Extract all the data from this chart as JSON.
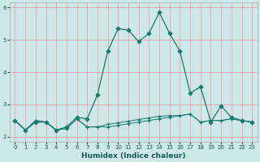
{
  "xlabel": "Humidex (Indice chaleur)",
  "bg_color": "#cce8e8",
  "grid_color": "#f0a0a0",
  "line_color": "#1a7a6a",
  "xlim": [
    -0.5,
    23.5
  ],
  "ylim": [
    1.85,
    6.15
  ],
  "yticks": [
    2,
    3,
    4,
    5,
    6
  ],
  "xticks": [
    0,
    1,
    2,
    3,
    4,
    5,
    6,
    7,
    8,
    9,
    10,
    11,
    12,
    13,
    14,
    15,
    16,
    17,
    18,
    19,
    20,
    21,
    22,
    23
  ],
  "series": [
    {
      "x": [
        0,
        1,
        2,
        3,
        4,
        5,
        6,
        7,
        8,
        9,
        10,
        11,
        12,
        13,
        14,
        15,
        16,
        17,
        18,
        19,
        20,
        21,
        22,
        23
      ],
      "y": [
        2.5,
        2.2,
        2.5,
        2.45,
        2.2,
        2.25,
        2.55,
        2.3,
        2.3,
        2.3,
        2.35,
        2.4,
        2.45,
        2.5,
        2.55,
        2.6,
        2.65,
        2.7,
        2.45,
        2.5,
        2.5,
        2.55,
        2.5,
        2.45
      ],
      "marker": "+",
      "linestyle": "-",
      "lw": 0.7
    },
    {
      "x": [
        0,
        1,
        2,
        3,
        4,
        5,
        6,
        7,
        8,
        9,
        10,
        11,
        12,
        13,
        14,
        15,
        16,
        17,
        18,
        19,
        20,
        21,
        22,
        23
      ],
      "y": [
        2.5,
        2.2,
        2.5,
        2.45,
        2.2,
        2.25,
        2.55,
        2.3,
        2.3,
        2.38,
        2.43,
        2.48,
        2.53,
        2.58,
        2.63,
        2.65,
        2.65,
        2.7,
        2.45,
        2.5,
        2.5,
        2.55,
        2.5,
        2.45
      ],
      "marker": "+",
      "linestyle": "-",
      "lw": 0.7
    },
    {
      "x": [
        0,
        1,
        2,
        3,
        4,
        5,
        6,
        7,
        8,
        9,
        10,
        11,
        12,
        13,
        14,
        15,
        16,
        17,
        18,
        19,
        20,
        21,
        22,
        23
      ],
      "y": [
        2.5,
        2.2,
        2.45,
        2.45,
        2.2,
        2.3,
        2.6,
        2.55,
        3.3,
        4.65,
        5.35,
        5.3,
        4.95,
        5.2,
        5.85,
        5.2,
        4.65,
        3.35,
        3.55,
        2.45,
        2.95,
        2.6,
        2.5,
        2.45
      ],
      "marker": "D",
      "linestyle": "-",
      "lw": 0.9
    }
  ]
}
